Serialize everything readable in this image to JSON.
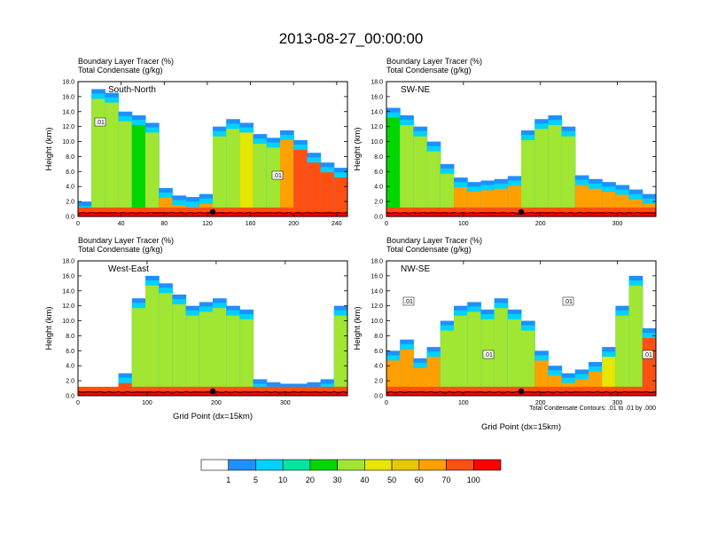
{
  "figure_title": "2013-08-27_00:00:00",
  "note": "Total Condensate Contours: .01 to .01 by .000",
  "colorbar": {
    "labels": [
      "1",
      "5",
      "10",
      "20",
      "30",
      "40",
      "50",
      "60",
      "70",
      "100"
    ],
    "colors": [
      "#ffffff",
      "#1e90ff",
      "#00d2ff",
      "#00e6a0",
      "#00d700",
      "#a0e632",
      "#e6e600",
      "#e6c800",
      "#ffa000",
      "#ff5014",
      "#ff0000"
    ]
  },
  "chart_data": [
    {
      "type": "heatmap",
      "title_line1": "Boundary Layer Tracer   (%)",
      "title_line2": "Total Condensate   (g/kg)",
      "inset_label": "South-North",
      "xlabel": "",
      "ylabel": "Height (km)",
      "xlim": [
        0,
        250
      ],
      "ylim": [
        0,
        18
      ],
      "x_ticks": [
        "0",
        "40",
        "80",
        "120",
        "160",
        "200",
        "240"
      ],
      "x_tick_values": [
        0,
        40,
        80,
        120,
        160,
        200,
        240
      ],
      "y_ticks": [
        "0.0",
        "2.0",
        "4.0",
        "6.0",
        "8.0",
        "10.0",
        "12.0",
        "14.0",
        "16.0",
        "18.0"
      ],
      "contour_labels": [
        ".01",
        ".01"
      ],
      "plume_tops_km": [
        2.0,
        17.0,
        16.5,
        14.0,
        13.5,
        12.5,
        3.8,
        2.8,
        2.6,
        3.0,
        12.0,
        13.0,
        12.5,
        11.0,
        10.5,
        11.5,
        10.2,
        8.5,
        7.2,
        6.5
      ],
      "plume_levels_pct": [
        70,
        30,
        30,
        30,
        20,
        30,
        60,
        60,
        60,
        60,
        30,
        30,
        40,
        30,
        30,
        60,
        70,
        70,
        70,
        70
      ]
    },
    {
      "type": "heatmap",
      "title_line1": "Boundary Layer Tracer   (%)",
      "title_line2": "Total Condensate   (g/kg)",
      "inset_label": "SW-NE",
      "xlabel": "",
      "ylabel": "Height (km)",
      "xlim": [
        0,
        350
      ],
      "ylim": [
        0,
        18
      ],
      "x_ticks": [
        "0",
        "100",
        "200",
        "300"
      ],
      "x_tick_values": [
        0,
        100,
        200,
        300
      ],
      "y_ticks": [
        "0.0",
        "2.0",
        "4.0",
        "6.0",
        "8.0",
        "10.0",
        "12.0",
        "14.0",
        "16.0",
        "18.0"
      ],
      "contour_labels": [],
      "plume_tops_km": [
        14.5,
        13.5,
        12.0,
        10.0,
        7.0,
        5.2,
        4.6,
        4.8,
        5.0,
        5.4,
        11.5,
        13.0,
        13.5,
        12.0,
        5.5,
        5.0,
        4.6,
        4.2,
        3.6,
        3.0
      ],
      "plume_levels_pct": [
        20,
        30,
        30,
        30,
        30,
        60,
        60,
        60,
        60,
        60,
        30,
        30,
        30,
        30,
        60,
        60,
        60,
        60,
        60,
        60
      ]
    },
    {
      "type": "heatmap",
      "title_line1": "Boundary Layer Tracer   (%)",
      "title_line2": "Total Condensate   (g/kg)",
      "inset_label": "West-East",
      "xlabel": "Grid Point (dx=15km)",
      "ylabel": "Height (km)",
      "xlim": [
        0,
        390
      ],
      "ylim": [
        0,
        18
      ],
      "x_ticks": [
        "0",
        "100",
        "200",
        "300"
      ],
      "x_tick_values": [
        0,
        100,
        200,
        300
      ],
      "y_ticks": [
        "0.0",
        "2.0",
        "4.0",
        "6.0",
        "8.0",
        "10.0",
        "12.0",
        "14.0",
        "16.0",
        "18.0"
      ],
      "contour_labels": [],
      "plume_tops_km": [
        0.8,
        0.8,
        1.0,
        3.0,
        13.0,
        16.0,
        15.0,
        13.5,
        12.0,
        12.5,
        13.0,
        12.0,
        11.5,
        2.2,
        1.8,
        1.6,
        1.6,
        1.8,
        2.2,
        12.0
      ],
      "plume_levels_pct": [
        70,
        70,
        70,
        70,
        30,
        30,
        30,
        30,
        30,
        30,
        30,
        30,
        30,
        60,
        60,
        60,
        60,
        60,
        60,
        30
      ]
    },
    {
      "type": "heatmap",
      "title_line1": "Boundary Layer Tracer   (%)",
      "title_line2": "Total Condensate   (g/kg)",
      "inset_label": "NW-SE",
      "xlabel": "Grid Point (dx=15km)",
      "ylabel": "Height (km)",
      "xlim": [
        0,
        350
      ],
      "ylim": [
        0,
        18
      ],
      "x_ticks": [
        "0",
        "100",
        "200",
        "300"
      ],
      "x_tick_values": [
        0,
        100,
        200,
        300
      ],
      "y_ticks": [
        "0.0",
        "2.0",
        "4.0",
        "6.0",
        "8.0",
        "10.0",
        "12.0",
        "14.0",
        "16.0",
        "18.0"
      ],
      "contour_labels": [
        ".01",
        ".01",
        ".01",
        ".01"
      ],
      "plume_tops_km": [
        6.0,
        7.5,
        5.0,
        6.5,
        10.0,
        12.0,
        12.5,
        11.5,
        13.0,
        11.5,
        10.0,
        6.0,
        4.0,
        3.0,
        3.5,
        4.5,
        6.5,
        12.0,
        16.0,
        9.0
      ],
      "plume_levels_pct": [
        60,
        60,
        60,
        60,
        30,
        30,
        30,
        30,
        30,
        30,
        30,
        60,
        60,
        60,
        60,
        60,
        40,
        30,
        30,
        70
      ]
    }
  ]
}
